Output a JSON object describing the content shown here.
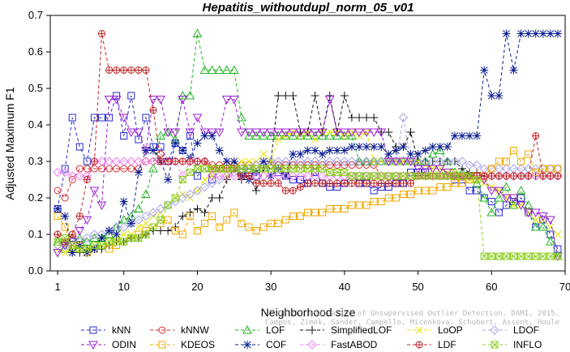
{
  "chart_data": {
    "type": "line",
    "title": "Hepatitis_withoutdupl_norm_05_v01",
    "xlabel": "Neighborhood size",
    "ylabel": "Adjusted Maximum F1",
    "xlim": [
      0,
      70
    ],
    "ylim": [
      0,
      0.7
    ],
    "xticks": [
      "1",
      "10",
      "20",
      "30",
      "40",
      "50",
      "60",
      "70"
    ],
    "yticks": [
      "0.0",
      "0.1",
      "0.2",
      "0.3",
      "0.4",
      "0.5",
      "0.6",
      "0.7"
    ],
    "grid": false,
    "legend_position": "bottom",
    "watermark_lines": [
      "Campos, Zimek, Sander, Campello, Micenkova, Schubert, Assent, Houle",
      "On the Evaluation of Unsupervised Outlier Detection. DAMI, 2015."
    ],
    "series": [
      {
        "name": "kNN",
        "color": "#2a2ad6",
        "marker": "square",
        "dash": "4,3",
        "values": [
          0.17,
          0.28,
          0.42,
          0.34,
          0.3,
          0.42,
          0.42,
          0.42,
          0.48,
          0.37,
          0.48,
          0.36,
          0.42,
          0.34,
          0.34,
          0.3,
          0.35,
          0.33,
          0.37,
          0.26,
          0.28,
          0.25,
          0.28,
          0.28,
          0.28,
          0.27,
          0.27,
          0.26,
          0.28,
          0.28,
          0.27,
          0.26,
          0.25,
          0.25,
          0.24,
          0.27,
          0.24,
          0.23,
          0.23,
          0.24,
          0.26,
          0.24,
          0.24,
          0.22,
          0.23,
          0.23,
          0.24,
          0.24,
          0.27,
          0.27,
          0.27,
          0.26,
          0.26,
          0.26,
          0.25,
          0.25,
          0.22,
          0.22,
          0.2,
          0.19,
          0.16,
          0.18,
          0.19,
          0.2,
          0.16,
          0.12,
          0.14,
          0.1,
          0.06
        ]
      },
      {
        "name": "kNNW",
        "color": "#d62a2a",
        "marker": "circle",
        "dash": "4,3",
        "values": [
          0.22,
          0.2,
          0.25,
          0.28,
          0.28,
          0.28,
          0.28,
          0.28,
          0.28,
          0.28,
          0.28,
          0.28,
          0.3,
          0.3,
          0.32,
          0.3,
          0.3,
          0.3,
          0.3,
          0.3,
          0.3,
          0.29,
          0.29,
          0.29,
          0.29,
          0.29,
          0.29,
          0.29,
          0.29,
          0.29,
          0.29,
          0.29,
          0.29,
          0.29,
          0.29,
          0.29,
          0.29,
          0.29,
          0.29,
          0.29,
          0.29,
          0.29,
          0.29,
          0.29,
          0.26,
          0.26,
          0.26,
          0.26,
          0.26,
          0.26,
          0.26,
          0.26,
          0.26,
          0.26,
          0.26,
          0.26,
          0.26,
          0.26,
          0.26,
          0.26,
          0.26,
          0.26,
          0.26,
          0.26,
          0.26,
          0.26,
          0.26,
          0.26,
          0.26
        ]
      },
      {
        "name": "LOF",
        "color": "#22b422",
        "marker": "triangle-up",
        "dash": "4,3",
        "values": [
          0.08,
          0.06,
          0.09,
          0.09,
          0.08,
          0.09,
          0.09,
          0.1,
          0.12,
          0.14,
          0.15,
          0.17,
          0.21,
          0.28,
          0.37,
          0.38,
          0.36,
          0.48,
          0.48,
          0.65,
          0.55,
          0.55,
          0.55,
          0.55,
          0.55,
          0.42,
          0.37,
          0.37,
          0.37,
          0.37,
          0.37,
          0.37,
          0.37,
          0.37,
          0.37,
          0.37,
          0.37,
          0.37,
          0.37,
          0.37,
          0.37,
          0.3,
          0.3,
          0.3,
          0.3,
          0.3,
          0.3,
          0.3,
          0.3,
          0.3,
          0.3,
          0.32,
          0.33,
          0.3,
          0.27,
          0.27,
          0.26,
          0.24,
          0.2,
          0.16,
          0.2,
          0.23,
          0.18,
          0.22,
          0.18,
          0.12,
          0.12,
          0.08,
          0.04
        ]
      },
      {
        "name": "SimplifiedLOF",
        "color": "#111111",
        "marker": "plus",
        "dash": "4,3",
        "values": [
          0.1,
          0.08,
          0.05,
          0.05,
          0.06,
          0.06,
          0.06,
          0.07,
          0.08,
          0.08,
          0.09,
          0.09,
          0.1,
          0.11,
          0.11,
          0.11,
          0.12,
          0.15,
          0.16,
          0.17,
          0.16,
          0.2,
          0.2,
          0.25,
          0.28,
          0.25,
          0.26,
          0.22,
          0.28,
          0.3,
          0.48,
          0.48,
          0.48,
          0.38,
          0.38,
          0.48,
          0.38,
          0.48,
          0.38,
          0.48,
          0.42,
          0.42,
          0.42,
          0.42,
          0.38,
          0.38,
          0.34,
          0.34,
          0.38,
          0.3,
          0.3,
          0.3,
          0.3,
          0.3,
          0.3,
          0.28,
          0.27,
          0.27,
          0.26,
          0.26,
          0.26,
          0.26,
          0.26,
          0.26,
          0.26,
          0.26,
          0.26,
          0.26,
          0.26
        ]
      },
      {
        "name": "LoOP",
        "color": "#e6e600",
        "marker": "x",
        "dash": "4,3",
        "values": [
          0.06,
          0.05,
          0.06,
          0.06,
          0.06,
          0.06,
          0.07,
          0.08,
          0.09,
          0.1,
          0.1,
          0.12,
          0.13,
          0.15,
          0.16,
          0.18,
          0.2,
          0.21,
          0.2,
          0.22,
          0.25,
          0.26,
          0.28,
          0.26,
          0.28,
          0.3,
          0.3,
          0.3,
          0.32,
          0.3,
          0.36,
          0.37,
          0.38,
          0.37,
          0.38,
          0.36,
          0.38,
          0.38,
          0.38,
          0.37,
          0.38,
          0.37,
          0.38,
          0.3,
          0.3,
          0.3,
          0.3,
          0.3,
          0.3,
          0.3,
          0.29,
          0.28,
          0.28,
          0.27,
          0.27,
          0.26,
          0.25,
          0.25,
          0.24,
          0.23,
          0.22,
          0.2,
          0.18,
          0.18,
          0.16,
          0.14,
          0.14,
          0.12,
          0.1
        ]
      },
      {
        "name": "LDOF",
        "color": "#a7a7e6",
        "marker": "diamond",
        "dash": "4,3",
        "values": [
          0.07,
          0.07,
          0.08,
          0.08,
          0.09,
          0.1,
          0.1,
          0.11,
          0.12,
          0.12,
          0.13,
          0.14,
          0.15,
          0.16,
          0.17,
          0.18,
          0.19,
          0.2,
          0.21,
          0.22,
          0.23,
          0.24,
          0.25,
          0.26,
          0.27,
          0.28,
          0.28,
          0.29,
          0.29,
          0.3,
          0.3,
          0.3,
          0.3,
          0.3,
          0.3,
          0.3,
          0.3,
          0.3,
          0.3,
          0.3,
          0.3,
          0.3,
          0.3,
          0.3,
          0.3,
          0.3,
          0.3,
          0.42,
          0.3,
          0.3,
          0.3,
          0.3,
          0.3,
          0.3,
          0.3,
          0.3,
          0.29,
          0.29,
          0.28,
          0.28,
          0.28,
          0.28,
          0.28,
          0.28,
          0.28,
          0.28,
          0.28,
          0.28,
          0.28
        ]
      },
      {
        "name": "ODIN",
        "color": "#9b1bd6",
        "marker": "triangle-down",
        "dash": "4,3",
        "values": [
          0.05,
          0.07,
          0.08,
          0.11,
          0.14,
          0.22,
          0.18,
          0.47,
          0.47,
          0.42,
          0.38,
          0.38,
          0.33,
          0.47,
          0.47,
          0.38,
          0.38,
          0.47,
          0.38,
          0.42,
          0.38,
          0.38,
          0.38,
          0.47,
          0.47,
          0.38,
          0.38,
          0.38,
          0.38,
          0.38,
          0.38,
          0.38,
          0.38,
          0.38,
          0.38,
          0.38,
          0.38,
          0.47,
          0.38,
          0.38,
          0.38,
          0.38,
          0.38,
          0.38,
          0.38,
          0.3,
          0.3,
          0.3,
          0.3,
          0.28,
          0.28,
          0.28,
          0.28,
          0.27,
          0.26,
          0.26,
          0.26,
          0.26,
          0.25,
          0.22,
          0.22,
          0.2,
          0.2,
          0.18,
          0.16,
          0.16,
          0.15,
          0.14,
          0.04
        ]
      },
      {
        "name": "KDEOS",
        "color": "#f0a800",
        "marker": "square",
        "dash": "4,3",
        "values": [
          0.15,
          0.12,
          0.06,
          0.07,
          0.05,
          0.06,
          0.07,
          0.06,
          0.07,
          0.08,
          0.09,
          0.1,
          0.11,
          0.12,
          0.13,
          0.14,
          0.11,
          0.1,
          0.15,
          0.11,
          0.13,
          0.15,
          0.12,
          0.14,
          0.16,
          0.13,
          0.12,
          0.11,
          0.12,
          0.13,
          0.13,
          0.14,
          0.15,
          0.15,
          0.16,
          0.16,
          0.16,
          0.17,
          0.17,
          0.17,
          0.18,
          0.18,
          0.18,
          0.19,
          0.19,
          0.2,
          0.2,
          0.21,
          0.21,
          0.22,
          0.22,
          0.22,
          0.23,
          0.23,
          0.24,
          0.24,
          0.25,
          0.26,
          0.26,
          0.28,
          0.3,
          0.3,
          0.33,
          0.3,
          0.32,
          0.27,
          0.28,
          0.28,
          0.28
        ]
      },
      {
        "name": "COF",
        "color": "#0a1d8f",
        "marker": "asterisk",
        "dash": "4,3",
        "values": [
          0.17,
          0.15,
          0.05,
          0.07,
          0.05,
          0.06,
          0.09,
          0.11,
          0.1,
          0.19,
          0.13,
          0.27,
          0.33,
          0.33,
          0.3,
          0.25,
          0.35,
          0.33,
          0.31,
          0.35,
          0.37,
          0.37,
          0.33,
          0.3,
          0.3,
          0.26,
          0.25,
          0.27,
          0.3,
          0.26,
          0.28,
          0.26,
          0.32,
          0.32,
          0.33,
          0.33,
          0.32,
          0.33,
          0.33,
          0.33,
          0.34,
          0.34,
          0.34,
          0.34,
          0.34,
          0.32,
          0.33,
          0.34,
          0.32,
          0.32,
          0.33,
          0.34,
          0.34,
          0.34,
          0.37,
          0.37,
          0.37,
          0.37,
          0.55,
          0.48,
          0.48,
          0.65,
          0.55,
          0.65,
          0.65,
          0.65,
          0.65,
          0.65,
          0.65
        ]
      },
      {
        "name": "FastABOD",
        "color": "#f07ff0",
        "marker": "diamond",
        "dash": "4,3",
        "values": [
          0.27,
          0.27,
          0.26,
          0.26,
          0.26,
          0.3,
          0.3,
          0.3,
          0.3,
          0.3,
          0.3,
          0.3,
          0.3,
          0.3,
          0.3,
          0.3,
          0.3,
          0.26,
          0.3,
          0.3,
          0.3,
          0.26,
          0.26,
          0.26,
          0.26,
          0.26,
          0.26,
          0.26,
          0.26,
          0.26,
          0.26,
          0.26,
          0.26,
          0.26,
          0.26,
          0.26,
          0.26,
          0.26,
          0.26,
          0.26,
          0.26,
          0.26,
          0.26,
          0.26,
          0.26,
          0.26,
          0.26,
          0.26,
          0.26,
          0.26,
          0.26,
          0.26,
          0.26,
          0.26,
          0.26,
          0.26,
          0.26,
          0.26,
          0.26,
          0.26,
          0.26,
          0.26,
          0.26,
          0.26,
          0.26,
          0.26,
          0.26,
          0.26,
          0.26
        ]
      },
      {
        "name": "LDF",
        "color": "#c02424",
        "marker": "circle-plus",
        "dash": "4,3",
        "values": [
          0.1,
          0.08,
          0.1,
          0.15,
          0.25,
          0.3,
          0.65,
          0.55,
          0.55,
          0.55,
          0.55,
          0.55,
          0.55,
          0.44,
          0.3,
          0.3,
          0.3,
          0.3,
          0.3,
          0.3,
          0.3,
          0.28,
          0.28,
          0.28,
          0.28,
          0.26,
          0.26,
          0.24,
          0.24,
          0.24,
          0.24,
          0.22,
          0.22,
          0.23,
          0.24,
          0.24,
          0.24,
          0.24,
          0.24,
          0.24,
          0.24,
          0.24,
          0.24,
          0.24,
          0.24,
          0.24,
          0.24,
          0.24,
          0.24,
          0.26,
          0.26,
          0.26,
          0.26,
          0.26,
          0.26,
          0.26,
          0.26,
          0.26,
          0.26,
          0.26,
          0.26,
          0.26,
          0.26,
          0.26,
          0.26,
          0.37,
          0.26,
          0.26,
          0.26
        ]
      },
      {
        "name": "INFLO",
        "color": "#8ccf1f",
        "marker": "hourglass",
        "dash": "4,3",
        "values": [
          0.08,
          0.09,
          0.07,
          0.06,
          0.06,
          0.07,
          0.07,
          0.08,
          0.08,
          0.08,
          0.09,
          0.09,
          0.1,
          0.12,
          0.14,
          0.18,
          0.2,
          0.25,
          0.27,
          0.28,
          0.28,
          0.28,
          0.28,
          0.28,
          0.28,
          0.28,
          0.28,
          0.28,
          0.28,
          0.28,
          0.28,
          0.28,
          0.28,
          0.28,
          0.28,
          0.28,
          0.28,
          0.27,
          0.27,
          0.27,
          0.26,
          0.26,
          0.26,
          0.26,
          0.26,
          0.26,
          0.26,
          0.26,
          0.26,
          0.26,
          0.26,
          0.26,
          0.26,
          0.26,
          0.26,
          0.26,
          0.26,
          0.25,
          0.04,
          0.04,
          0.04,
          0.04,
          0.04,
          0.04,
          0.04,
          0.04,
          0.04,
          0.04,
          0.04
        ]
      }
    ]
  }
}
